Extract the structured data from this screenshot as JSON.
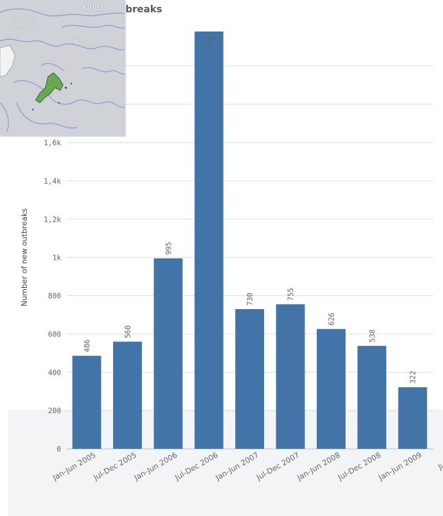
{
  "chart_data": {
    "type": "bar",
    "title": "breaks",
    "ylabel": "Number of new outbreaks",
    "categories": [
      "Jan-Jun 2005",
      "Jul-Dec 2005",
      "Jan-Jun 2006",
      "Jul-Dec 2006",
      "Jan-Jun 2007",
      "Jul-Dec 2007",
      "Jan-Jun 2008",
      "Jul-Dec 2008",
      "Jan-Jun 2009",
      "Jul-Dec"
    ],
    "values": [
      486,
      560,
      995,
      2180,
      730,
      755,
      626,
      538,
      322,
      null
    ],
    "data_labels": [
      "486",
      "560",
      "995",
      "2.18k",
      "730",
      "755",
      "626",
      "538",
      "322",
      ""
    ],
    "y_ticks": [
      0,
      200,
      400,
      600,
      800,
      1000,
      1200,
      1400,
      1600
    ],
    "y_tick_labels": [
      "0",
      "200",
      "400",
      "600",
      "800",
      "1k",
      "1,2k",
      "1,4k",
      "1,6k"
    ],
    "ylim": [
      0,
      2180
    ],
    "grid": true,
    "bar_color": "#4374a8"
  },
  "map": {
    "labels": [
      "Kiribati",
      "Solomon Islands",
      "Niue"
    ]
  }
}
